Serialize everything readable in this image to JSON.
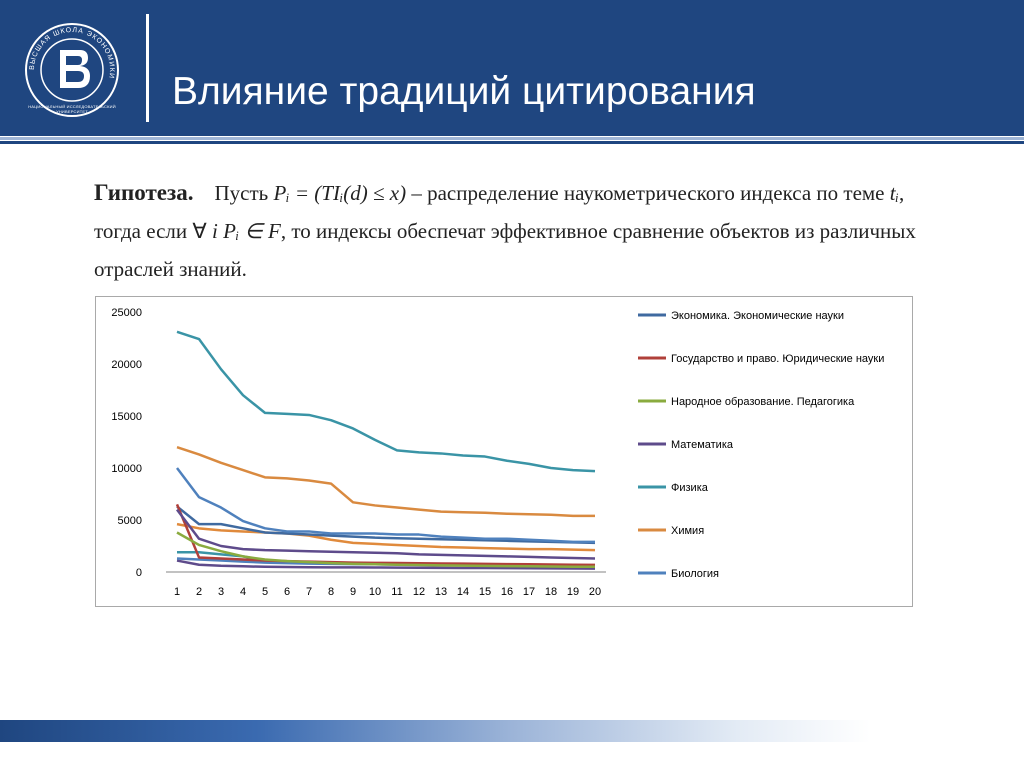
{
  "header": {
    "title": "Влияние традиций цитирования",
    "logo_caption_line1": "НАЦИОНАЛЬНЫЙ ИССЛЕДОВАТЕЛЬСКИЙ",
    "logo_caption_line2": "УНИВЕРСИТЕТ",
    "logo_ring_text": "ВЫСШАЯ ШКОЛА ЭКОНОМИКИ"
  },
  "hypothesis": {
    "label": "Гипотеза.",
    "t1": "Пусть ",
    "m1": "Pᵢ = (TIᵢ(d) ≤ x)",
    "t2": " – распределение наукометрического индекса по теме ",
    "m2": "tᵢ",
    "t3": ", тогда если ∀ ",
    "m3": "i Pᵢ ∈ F",
    "t4": ", то индексы обеспечат эффективное сравнение объектов из различных отраслей знаний."
  },
  "chart_data": {
    "type": "line",
    "x": [
      1,
      2,
      3,
      4,
      5,
      6,
      7,
      8,
      9,
      10,
      11,
      12,
      13,
      14,
      15,
      16,
      17,
      18,
      19,
      20
    ],
    "ylim": [
      0,
      25000
    ],
    "yticks": [
      0,
      5000,
      10000,
      15000,
      20000,
      25000
    ],
    "legend_position": "right",
    "grid": false,
    "series": [
      {
        "name": "Экономика. Экономические науки",
        "color": "#3f6aa0",
        "values": [
          6300,
          4600,
          4600,
          4200,
          3800,
          3700,
          3600,
          3500,
          3400,
          3300,
          3250,
          3200,
          3150,
          3100,
          3050,
          3000,
          2950,
          2900,
          2850,
          2800
        ]
      },
      {
        "name": "Государство и право. Юридические науки",
        "color": "#b0403a",
        "values": [
          6500,
          1400,
          1300,
          1200,
          1100,
          1050,
          1000,
          950,
          900,
          880,
          860,
          840,
          820,
          800,
          780,
          760,
          740,
          720,
          700,
          680
        ]
      },
      {
        "name": "Народное образование. Педагогика",
        "color": "#8aab3f",
        "values": [
          3800,
          2600,
          2000,
          1500,
          1200,
          1050,
          950,
          850,
          780,
          740,
          700,
          670,
          640,
          610,
          590,
          570,
          550,
          530,
          510,
          500
        ]
      },
      {
        "name": "Математика",
        "color": "#5e4b8b",
        "values": [
          6000,
          3200,
          2500,
          2200,
          2100,
          2050,
          2000,
          1950,
          1900,
          1850,
          1800,
          1700,
          1650,
          1600,
          1550,
          1500,
          1450,
          1400,
          1350,
          1300
        ]
      },
      {
        "name": "Физика",
        "color": "#3a94a6",
        "values": [
          23100,
          22400,
          19500,
          17000,
          15300,
          15200,
          15100,
          14600,
          13800,
          12700,
          11700,
          11500,
          11400,
          11200,
          11100,
          10700,
          10400,
          10000,
          9800,
          9700
        ]
      },
      {
        "name": "Химия",
        "color": "#d98a40",
        "values": [
          12000,
          11300,
          10500,
          9800,
          9100,
          9000,
          8800,
          8500,
          6700,
          6400,
          6200,
          6000,
          5800,
          5750,
          5700,
          5600,
          5550,
          5500,
          5400,
          5400
        ]
      },
      {
        "name": "Биология",
        "color": "#4f81bd",
        "values": [
          10000,
          7200,
          6200,
          4900,
          4200,
          3900,
          3900,
          3700,
          3700,
          3700,
          3600,
          3600,
          3400,
          3300,
          3200,
          3200,
          3100,
          3000,
          2900,
          2900
        ]
      }
    ],
    "extra_series": [
      {
        "color": "#e08a3c",
        "values": [
          4600,
          4200,
          4000,
          3900,
          3800,
          3700,
          3500,
          3100,
          2800,
          2700,
          2600,
          2500,
          2400,
          2350,
          2300,
          2250,
          2200,
          2200,
          2150,
          2100
        ]
      },
      {
        "color": "#3a94a6",
        "values": [
          1900,
          1900,
          1700,
          1500,
          1100,
          1000,
          950,
          900,
          850,
          800,
          780,
          760,
          740,
          720,
          700,
          680,
          660,
          640,
          620,
          600
        ]
      },
      {
        "color": "#5e4b8b",
        "values": [
          1100,
          700,
          600,
          550,
          500,
          480,
          460,
          450,
          440,
          430,
          420,
          410,
          400,
          390,
          380,
          370,
          360,
          350,
          340,
          330
        ]
      },
      {
        "color": "#4f81bd",
        "values": [
          1300,
          1200,
          1100,
          1000,
          900,
          850,
          800,
          780,
          760,
          740,
          720,
          700,
          680,
          660,
          640,
          620,
          600,
          580,
          560,
          540
        ]
      }
    ]
  }
}
